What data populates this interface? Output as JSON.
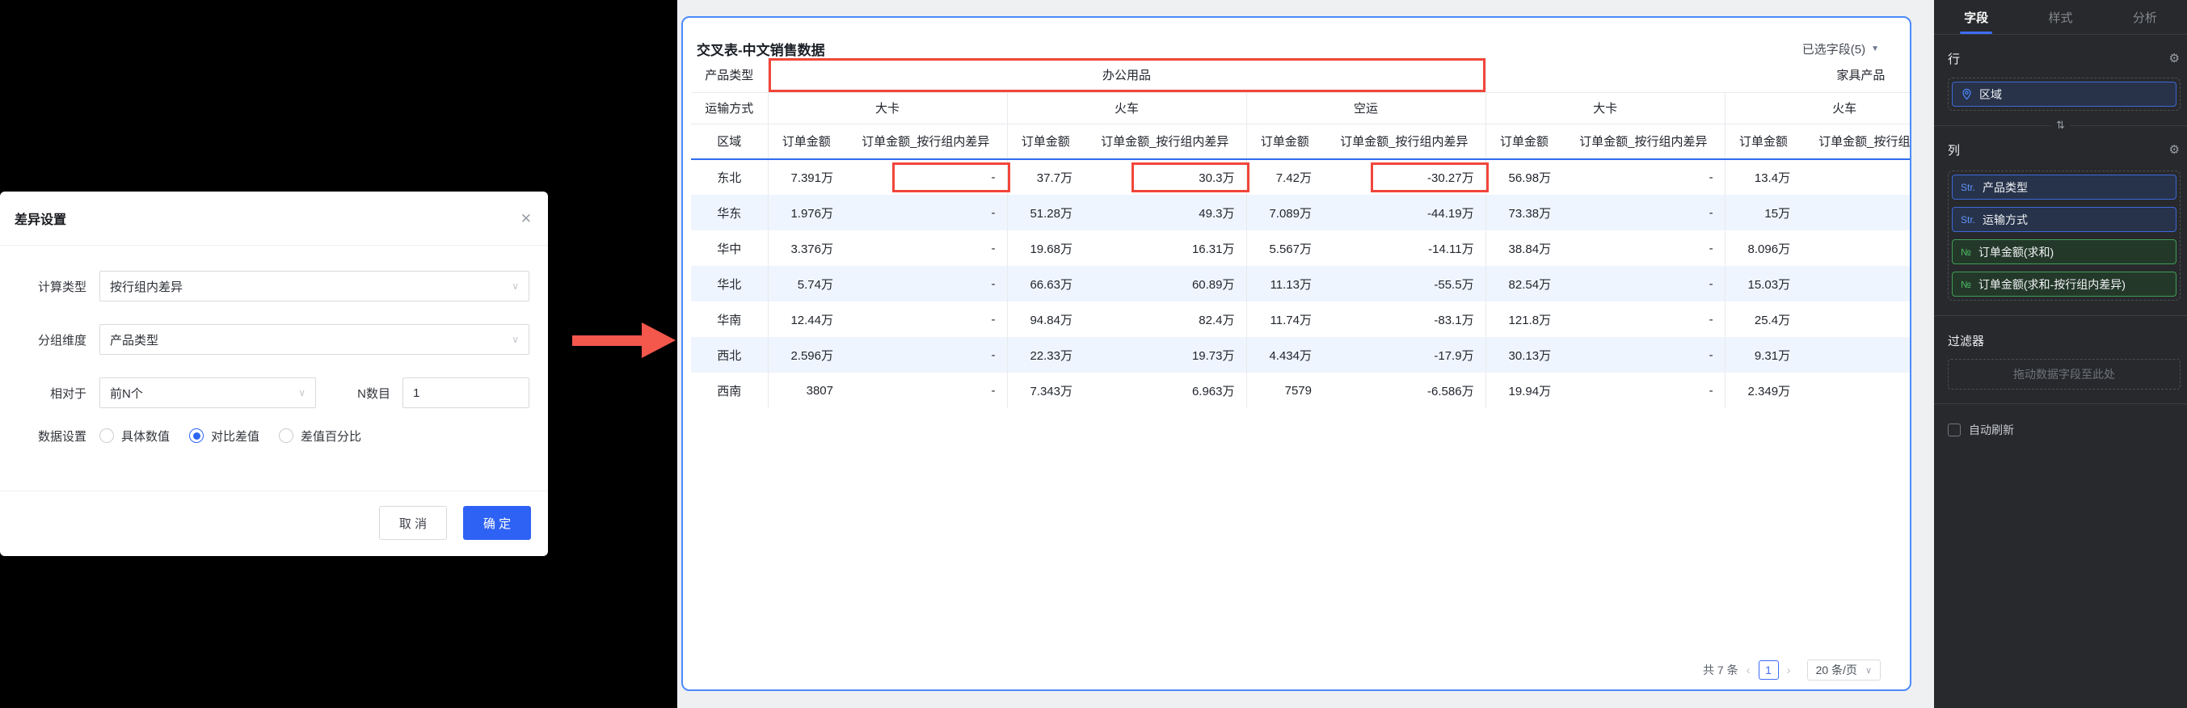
{
  "colors": {
    "accent_blue": "#2e65f0",
    "card_border_blue": "#4e8afa",
    "annotation_red": "#f2463a",
    "row_alt_bg": "#eff5fe",
    "sidebar_bg": "#27292c",
    "pill_blue_border": "#3e68d8",
    "pill_green_border": "#3f9d55"
  },
  "dialog": {
    "title": "差异设置",
    "close_icon": "✕",
    "fields": {
      "calc_type": {
        "label": "计算类型",
        "value": "按行组内差异"
      },
      "group_dim": {
        "label": "分组维度",
        "value": "产品类型"
      },
      "relative": {
        "label": "相对于",
        "value": "前N个"
      },
      "n_count": {
        "label": "N数目",
        "value": "1"
      },
      "data_setting": {
        "label": "数据设置",
        "options": [
          {
            "label": "具体数值",
            "selected": false
          },
          {
            "label": "对比差值",
            "selected": true
          },
          {
            "label": "差值百分比",
            "selected": false
          }
        ]
      }
    },
    "cancel_label": "取 消",
    "confirm_label": "确 定"
  },
  "table_card": {
    "title": "交叉表-中文销售数据",
    "selected_fields": "已选字段(5)",
    "header": {
      "product_type_label": "产品类型",
      "transport_label": "运输方式",
      "region_label": "区域",
      "product_groups": [
        {
          "name": "办公用品",
          "highlighted": true
        },
        {
          "name": "家具产品",
          "highlighted": false
        }
      ],
      "transports": [
        "大卡",
        "火车",
        "空运",
        "大卡",
        "火车"
      ],
      "amount_header": "订单金额",
      "diff_header": "订单金额_按行组内差异"
    },
    "rows": [
      {
        "region": "东北",
        "values": [
          "7.391万",
          "-",
          "37.7万",
          "30.3万",
          "7.42万",
          "-30.27万",
          "56.98万",
          "-",
          "13.4万",
          ""
        ],
        "highlight_cols": [
          1,
          3,
          5
        ]
      },
      {
        "region": "华东",
        "values": [
          "1.976万",
          "-",
          "51.28万",
          "49.3万",
          "7.089万",
          "-44.19万",
          "73.38万",
          "-",
          "15万",
          ""
        ],
        "highlight_cols": []
      },
      {
        "region": "华中",
        "values": [
          "3.376万",
          "-",
          "19.68万",
          "16.31万",
          "5.567万",
          "-14.11万",
          "38.84万",
          "-",
          "8.096万",
          ""
        ],
        "highlight_cols": []
      },
      {
        "region": "华北",
        "values": [
          "5.74万",
          "-",
          "66.63万",
          "60.89万",
          "11.13万",
          "-55.5万",
          "82.54万",
          "-",
          "15.03万",
          ""
        ],
        "highlight_cols": []
      },
      {
        "region": "华南",
        "values": [
          "12.44万",
          "-",
          "94.84万",
          "82.4万",
          "11.74万",
          "-83.1万",
          "121.8万",
          "-",
          "25.4万",
          ""
        ],
        "highlight_cols": []
      },
      {
        "region": "西北",
        "values": [
          "2.596万",
          "-",
          "22.33万",
          "19.73万",
          "4.434万",
          "-17.9万",
          "30.13万",
          "-",
          "9.31万",
          ""
        ],
        "highlight_cols": []
      },
      {
        "region": "西南",
        "values": [
          "3807",
          "-",
          "7.343万",
          "6.963万",
          "7579",
          "-6.586万",
          "19.94万",
          "-",
          "2.349万",
          ""
        ],
        "highlight_cols": []
      }
    ],
    "pagination": {
      "total": "共 7 条",
      "prev": "‹",
      "page": "1",
      "next": "›",
      "page_size": "20 条/页"
    }
  },
  "sidebar": {
    "tabs": [
      {
        "label": "字段",
        "active": true
      },
      {
        "label": "样式",
        "active": false
      },
      {
        "label": "分析",
        "active": false
      }
    ],
    "rows_section": {
      "title": "行",
      "fields": [
        {
          "label": "区域",
          "type": "geo"
        }
      ]
    },
    "cols_section": {
      "title": "列",
      "fields": [
        {
          "label": "产品类型",
          "type": "str"
        },
        {
          "label": "运输方式",
          "type": "str"
        },
        {
          "label": "订单金额(求和)",
          "type": "num"
        },
        {
          "label": "订单金额(求和-按行组内差异)",
          "type": "num"
        }
      ]
    },
    "type_prefixes": {
      "str": "Str.",
      "num": "№"
    },
    "filter_section": {
      "title": "过滤器",
      "dropzone_hint": "拖动数据字段至此处"
    },
    "auto_refresh": {
      "label": "自动刷新",
      "checked": false
    }
  }
}
